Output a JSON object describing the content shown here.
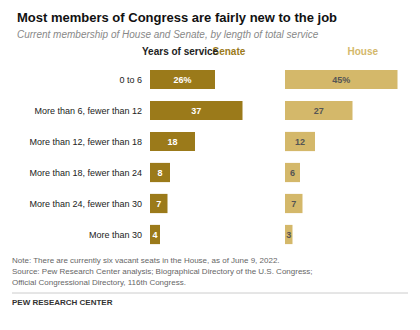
{
  "chart_data": {
    "type": "bar",
    "orientation": "horizontal",
    "title": "Most members of Congress are fairly new to the job",
    "subtitle": "Current membership of House and Senate, by length of total service",
    "ylabel": "Years of service",
    "categories": [
      "0 to 6",
      "More than 6, fewer than 12",
      "More than 12, fewer than 18",
      "More than 18, fewer than 24",
      "More than 24, fewer than 30",
      "More than 30"
    ],
    "series": [
      {
        "name": "Senate",
        "color": "#9B7A1A",
        "values": [
          26,
          37,
          18,
          8,
          7,
          4
        ],
        "value_labels": [
          "26%",
          "37",
          "18",
          "8",
          "7",
          "4"
        ]
      },
      {
        "name": "House",
        "color": "#D4B86A",
        "values": [
          45,
          27,
          12,
          6,
          7,
          3
        ],
        "value_labels": [
          "45%",
          "27",
          "12",
          "6",
          "7",
          "3"
        ]
      }
    ],
    "xlim": [
      0,
      50
    ],
    "data_labels": true,
    "tick_labels": "y",
    "grid": false,
    "notes": [
      "Note: There are currently six vacant seats in the House, as of June 9, 2022.",
      "Source: Pew Research Center analysis; Biographical Directory of the U.S. Congress;",
      "Official Congressional Directory, 116th Congress."
    ],
    "footer": "PEW RESEARCH CENTER"
  }
}
